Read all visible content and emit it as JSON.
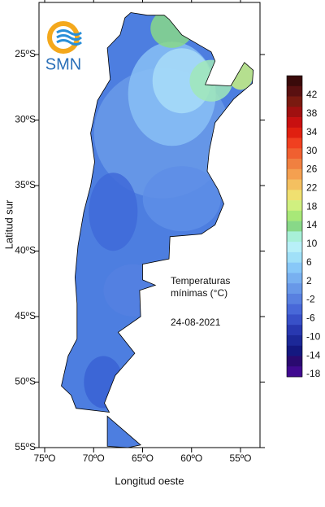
{
  "logo": "SMN",
  "map": {
    "ylabel": "Latitud sur",
    "xlabel": "Longitud oeste",
    "annotation": [
      "Temperaturas",
      "mínimas (°C)"
    ],
    "date": "24-08-2021",
    "xticks": [
      {
        "value": -75,
        "label": "75ºO"
      },
      {
        "value": -70,
        "label": "70ºO"
      },
      {
        "value": -65,
        "label": "65ºO"
      },
      {
        "value": -60,
        "label": "60ºO"
      },
      {
        "value": -55,
        "label": "55ºO"
      }
    ],
    "yticks": [
      {
        "value": -25,
        "label": "25ºS"
      },
      {
        "value": -30,
        "label": "30ºS"
      },
      {
        "value": -35,
        "label": "35ºS"
      },
      {
        "value": -40,
        "label": "40ºS"
      },
      {
        "value": -45,
        "label": "45ºS"
      },
      {
        "value": -50,
        "label": "50ºS"
      },
      {
        "value": -55,
        "label": "55ºS"
      }
    ],
    "colorbar": {
      "labels": [
        42,
        38,
        34,
        30,
        26,
        22,
        18,
        14,
        10,
        6,
        2,
        -2,
        -6,
        -10,
        -14,
        -18
      ],
      "colors": [
        "#3a0a0a",
        "#5a1010",
        "#7a1a10",
        "#a01010",
        "#c81010",
        "#e02010",
        "#f04020",
        "#f06030",
        "#f08040",
        "#f4a050",
        "#f4c060",
        "#f0e070",
        "#d0f080",
        "#a8e878",
        "#88d888",
        "#a8f0d8",
        "#b8f0f8",
        "#a0e0f8",
        "#88c8f8",
        "#78b0f0",
        "#6898e8",
        "#5880e0",
        "#4868d8",
        "#3850c8",
        "#2838b0",
        "#1c2898",
        "#141880",
        "#2a0a70",
        "#400a90"
      ]
    }
  }
}
